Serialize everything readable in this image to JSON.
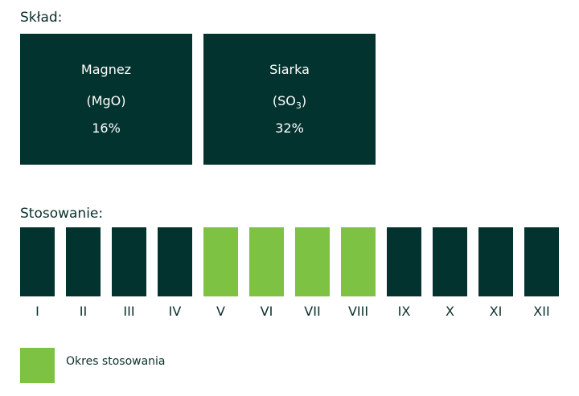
{
  "composition": {
    "heading": "Skład:",
    "items": [
      {
        "name": "Magnez",
        "formula": [
          {
            "text": "(MgO)"
          }
        ],
        "value": "16%"
      },
      {
        "name": "Siarka",
        "formula": [
          {
            "text": "(SO"
          },
          {
            "sub": "3"
          },
          {
            "text": ")"
          }
        ],
        "value": "32%"
      }
    ]
  },
  "application": {
    "heading": "Stosowanie:",
    "months": [
      {
        "label": "I",
        "active": false
      },
      {
        "label": "II",
        "active": false
      },
      {
        "label": "III",
        "active": false
      },
      {
        "label": "IV",
        "active": false
      },
      {
        "label": "V",
        "active": true
      },
      {
        "label": "VI",
        "active": true
      },
      {
        "label": "VII",
        "active": true
      },
      {
        "label": "VIII",
        "active": true
      },
      {
        "label": "IX",
        "active": false
      },
      {
        "label": "X",
        "active": false
      },
      {
        "label": "XI",
        "active": false
      },
      {
        "label": "XII",
        "active": false
      }
    ],
    "dark_color": "#03332e",
    "active_color": "#7dc242"
  },
  "legend": {
    "label": "Okres stosowania"
  }
}
